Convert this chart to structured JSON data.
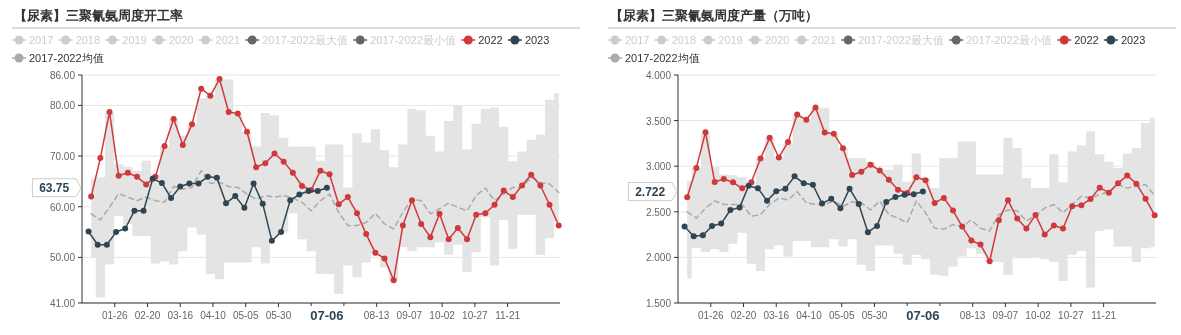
{
  "chart_data": [
    {
      "type": "line",
      "title": "【尿素】三聚氰氨周度开工率",
      "legend": "top",
      "grid": "y",
      "x": [
        "--01-08",
        "--01-15",
        "--01-22",
        "--01-29",
        "--02-05",
        "--02-12",
        "--02-19",
        "--02-26",
        "--03-04",
        "--03-11",
        "--03-18",
        "--03-25",
        "--04-01",
        "--04-08",
        "--04-15",
        "--04-22",
        "--04-29",
        "--05-06",
        "--05-13",
        "--05-20",
        "--05-27",
        "--06-03",
        "--06-10",
        "--06-17",
        "--06-24",
        "--07-01",
        "--07-08",
        "--07-15",
        "--07-22",
        "--07-29",
        "--08-05",
        "--08-12",
        "--08-19",
        "--08-26",
        "--09-02",
        "--09-09",
        "--09-16",
        "--09-23",
        "--09-30",
        "--10-07",
        "--10-14",
        "--10-21",
        "--10-28",
        "--11-04",
        "--11-11",
        "--11-18",
        "--11-25",
        "--12-02",
        "--12-09",
        "--12-16",
        "--12-23",
        "--12-30"
      ],
      "xlim": [
        "--01-01",
        "--12-31"
      ],
      "xticks": [
        {
          "value": "--01-26",
          "label": "01-26"
        },
        {
          "value": "--02-20",
          "label": "02-20"
        },
        {
          "value": "--03-16",
          "label": "03-16"
        },
        {
          "value": "--04-10",
          "label": "04-10"
        },
        {
          "value": "--05-05",
          "label": "05-05"
        },
        {
          "value": "--05-30",
          "label": "05-30"
        },
        {
          "value": "--06-24",
          "label": null
        },
        {
          "value": "--07-19",
          "label": null
        },
        {
          "value": "--08-13",
          "label": "08-13"
        },
        {
          "value": "--09-07",
          "label": "09-07"
        },
        {
          "value": "--10-02",
          "label": "10-02"
        },
        {
          "value": "--10-27",
          "label": "10-27"
        },
        {
          "value": "--11-21",
          "label": "11-21"
        }
      ],
      "ylim": [
        41,
        86
      ],
      "yticks": [
        {
          "value": 41,
          "label": "41.00"
        },
        {
          "value": 50,
          "label": "50.00"
        },
        {
          "value": 60,
          "label": "60.00"
        },
        {
          "value": 70,
          "label": "70.00"
        },
        {
          "value": 80,
          "label": "80.00"
        },
        {
          "value": 86,
          "label": "86.00"
        }
      ],
      "annotations": [
        "63.75",
        "07-06"
      ],
      "series": [
        {
          "name": "2017",
          "color": "#cccccc",
          "values": [
            null,
            null,
            null,
            null,
            null,
            null,
            null,
            null,
            null,
            null,
            null,
            null,
            null,
            null,
            null,
            null,
            null,
            null,
            null,
            null,
            null,
            null,
            null,
            null,
            null,
            null,
            null,
            null,
            null,
            null,
            null,
            null,
            null,
            null,
            null,
            null,
            null,
            null,
            null,
            null,
            null,
            null,
            null,
            null,
            null,
            null,
            null,
            null,
            null,
            null,
            null,
            null
          ]
        },
        {
          "name": "2018",
          "color": "#cccccc",
          "values": [
            null,
            null,
            null,
            null,
            null,
            null,
            null,
            null,
            null,
            null,
            null,
            null,
            null,
            null,
            null,
            null,
            null,
            null,
            null,
            null,
            null,
            null,
            null,
            null,
            null,
            null,
            null,
            null,
            null,
            null,
            null,
            null,
            null,
            null,
            null,
            null,
            null,
            null,
            null,
            null,
            null,
            null,
            null,
            null,
            null,
            null,
            null,
            null,
            null,
            null,
            null,
            null
          ]
        },
        {
          "name": "2019",
          "color": "#cccccc",
          "values": [
            null,
            null,
            null,
            null,
            null,
            null,
            null,
            null,
            null,
            null,
            null,
            null,
            null,
            null,
            null,
            null,
            null,
            null,
            null,
            null,
            null,
            null,
            null,
            null,
            null,
            null,
            null,
            null,
            null,
            null,
            null,
            null,
            null,
            null,
            null,
            null,
            null,
            null,
            null,
            null,
            null,
            null,
            null,
            null,
            null,
            null,
            null,
            null,
            null,
            null,
            null,
            null
          ]
        },
        {
          "name": "2020",
          "color": "#cccccc",
          "values": [
            null,
            null,
            null,
            null,
            null,
            null,
            null,
            null,
            null,
            null,
            null,
            null,
            null,
            null,
            null,
            null,
            null,
            null,
            null,
            null,
            null,
            null,
            null,
            null,
            null,
            null,
            null,
            null,
            null,
            null,
            null,
            null,
            null,
            null,
            null,
            null,
            null,
            null,
            null,
            null,
            null,
            null,
            null,
            null,
            null,
            null,
            null,
            null,
            null,
            null,
            null,
            null
          ]
        },
        {
          "name": "2021",
          "color": "#cccccc",
          "values": [
            null,
            null,
            null,
            null,
            null,
            null,
            null,
            null,
            null,
            null,
            null,
            null,
            null,
            null,
            null,
            null,
            null,
            null,
            null,
            null,
            null,
            null,
            null,
            null,
            null,
            null,
            null,
            null,
            null,
            null,
            null,
            null,
            null,
            null,
            null,
            null,
            null,
            null,
            null,
            null,
            null,
            null,
            null,
            null,
            null,
            null,
            null,
            null,
            null,
            null,
            null,
            null
          ]
        },
        {
          "name": "2017-2022最大值",
          "color": "#666666",
          "values": [
            null,
            null,
            null,
            null,
            null,
            null,
            null,
            null,
            null,
            null,
            null,
            null,
            null,
            null,
            null,
            null,
            null,
            null,
            null,
            null,
            null,
            null,
            null,
            null,
            null,
            null,
            null,
            null,
            null,
            null,
            null,
            null,
            null,
            null,
            null,
            null,
            null,
            null,
            null,
            null,
            null,
            null,
            null,
            null,
            null,
            null,
            null,
            null,
            null,
            null,
            null,
            null
          ]
        },
        {
          "name": "2017-2022最小值",
          "color": "#666666",
          "values": [
            null,
            null,
            null,
            null,
            null,
            null,
            null,
            null,
            null,
            null,
            null,
            null,
            null,
            null,
            null,
            null,
            null,
            null,
            null,
            null,
            null,
            null,
            null,
            null,
            null,
            null,
            null,
            null,
            null,
            null,
            null,
            null,
            null,
            null,
            null,
            null,
            null,
            null,
            null,
            null,
            null,
            null,
            null,
            null,
            null,
            null,
            null,
            null,
            null,
            null,
            null,
            null
          ]
        },
        {
          "name": "2017-2022均值",
          "type": "line",
          "line_style": "dashed",
          "marker": "none",
          "color": "#aaaaaa",
          "upper": [
            65.5,
            65.8,
            78.6,
            68.4,
            67.9,
            67.1,
            69.1,
            66.3,
            71.9,
            77.3,
            74.0,
            76.3,
            81.4,
            81.9,
            85.1,
            85.1,
            78.3,
            74.7,
            71.9,
            78.5,
            78.0,
            73.6,
            71.9,
            71.9,
            71.9,
            69.1,
            72.3,
            72.3,
            63.8,
            74.5,
            72.7,
            75.3,
            71.2,
            67.8,
            72.3,
            79.3,
            79.0,
            74.0,
            70.9,
            76.9,
            80.1,
            71.3,
            76.4,
            79.3,
            79.6,
            75.8,
            69.0,
            70.9,
            73.2,
            74.2,
            81.1,
            82.4
          ],
          "lower": [
            50.0,
            42.1,
            48.6,
            58.2,
            56.6,
            54.2,
            54.2,
            48.8,
            49.2,
            48.6,
            51.2,
            55.9,
            54.5,
            46.7,
            45.7,
            49.0,
            49.0,
            49.0,
            52.0,
            48.8,
            54.0,
            54.9,
            58.7,
            53.6,
            51.2,
            46.7,
            46.7,
            42.8,
            48.4,
            46.1,
            49.0,
            50.7,
            48.0,
            45.4,
            52.0,
            51.2,
            52.0,
            52.0,
            53.0,
            50.5,
            52.5,
            47.1,
            51.0,
            57.9,
            48.4,
            57.4,
            51.7,
            58.4,
            58.4,
            50.5,
            53.8,
            57.1
          ],
          "values": [
            58.6,
            57.4,
            59.9,
            62.6,
            61.9,
            61.2,
            61.9,
            61.2,
            60.9,
            64.0,
            63.5,
            63.8,
            67.1,
            64.6,
            64.8,
            64.0,
            63.8,
            62.5,
            61.5,
            62.2,
            61.9,
            62.2,
            61.7,
            60.9,
            59.2,
            61.2,
            62.5,
            58.9,
            56.3,
            56.3,
            56.9,
            58.7,
            56.6,
            55.6,
            58.9,
            61.5,
            61.2,
            58.6,
            59.6,
            60.7,
            59.9,
            59.2,
            62.2,
            63.7,
            61.2,
            62.5,
            63.8,
            63.8,
            65.8,
            64.8,
            64.5,
            62.8
          ]
        },
        {
          "name": "2022",
          "color": "#d0393b",
          "marker": "circle",
          "values": [
            62.0,
            69.6,
            78.7,
            66.1,
            66.7,
            65.9,
            64.4,
            65.9,
            72.0,
            77.3,
            72.2,
            76.3,
            83.3,
            81.9,
            85.2,
            78.7,
            78.4,
            74.8,
            67.8,
            68.6,
            70.5,
            68.9,
            66.7,
            64.1,
            63.3,
            67.1,
            66.4,
            60.5,
            61.9,
            58.7,
            54.6,
            50.9,
            49.8,
            45.5,
            56.3,
            61.3,
            56.6,
            54.0,
            58.6,
            53.6,
            55.8,
            53.6,
            58.4,
            58.7,
            60.4,
            63.2,
            61.9,
            64.2,
            66.3,
            64.2,
            60.4,
            56.3
          ]
        },
        {
          "name": "2023",
          "color": "#2f4554",
          "marker": "circle",
          "x": [
            "--01-06",
            "--01-13",
            "--01-20",
            "--01-27",
            "--02-03",
            "--02-10",
            "--02-17",
            "--02-24",
            "--03-02",
            "--03-09",
            "--03-16",
            "--03-23",
            "--03-30",
            "--04-06",
            "--04-13",
            "--04-20",
            "--04-27",
            "--05-04",
            "--05-11",
            "--05-18",
            "--05-25",
            "--06-01",
            "--06-08",
            "--06-15",
            "--06-22",
            "--06-29",
            "--07-06"
          ],
          "values": [
            55.1,
            52.5,
            52.5,
            55.0,
            55.7,
            59.2,
            59.2,
            65.5,
            64.7,
            61.7,
            64.0,
            64.6,
            64.6,
            65.9,
            65.7,
            60.7,
            62.1,
            59.8,
            64.6,
            60.6,
            53.3,
            55.0,
            61.3,
            62.4,
            63.1,
            63.1,
            63.75
          ]
        }
      ]
    },
    {
      "type": "line",
      "title": "【尿素】三聚氰氨周度产量（万吨）",
      "legend": "top",
      "grid": "y",
      "x": [
        "--01-08",
        "--01-15",
        "--01-22",
        "--01-29",
        "--02-05",
        "--02-12",
        "--02-19",
        "--02-26",
        "--03-04",
        "--03-11",
        "--03-18",
        "--03-25",
        "--04-01",
        "--04-08",
        "--04-15",
        "--04-22",
        "--04-29",
        "--05-06",
        "--05-13",
        "--05-20",
        "--05-27",
        "--06-03",
        "--06-10",
        "--06-17",
        "--06-24",
        "--07-01",
        "--07-08",
        "--07-15",
        "--07-22",
        "--07-29",
        "--08-05",
        "--08-12",
        "--08-19",
        "--08-26",
        "--09-02",
        "--09-09",
        "--09-16",
        "--09-23",
        "--09-30",
        "--10-07",
        "--10-14",
        "--10-21",
        "--10-28",
        "--11-04",
        "--11-11",
        "--11-18",
        "--11-25",
        "--12-02",
        "--12-09",
        "--12-16",
        "--12-23",
        "--12-30"
      ],
      "xlim": [
        "--01-01",
        "--12-31"
      ],
      "xticks": [
        {
          "value": "--01-26",
          "label": "01-26"
        },
        {
          "value": "--02-20",
          "label": "02-20"
        },
        {
          "value": "--03-16",
          "label": "03-16"
        },
        {
          "value": "--04-10",
          "label": "04-10"
        },
        {
          "value": "--05-05",
          "label": "05-05"
        },
        {
          "value": "--05-30",
          "label": "05-30"
        },
        {
          "value": "--06-24",
          "label": null
        },
        {
          "value": "--07-19",
          "label": null
        },
        {
          "value": "--08-13",
          "label": "08-13"
        },
        {
          "value": "--09-07",
          "label": "09-07"
        },
        {
          "value": "--10-02",
          "label": "10-02"
        },
        {
          "value": "--10-27",
          "label": "10-27"
        },
        {
          "value": "--11-21",
          "label": "11-21"
        }
      ],
      "ylim": [
        1.5,
        4
      ],
      "yticks": [
        {
          "value": 1.5,
          "label": "1.500"
        },
        {
          "value": 2,
          "label": "2.000"
        },
        {
          "value": 2.5,
          "label": "2.500"
        },
        {
          "value": 3,
          "label": "3.000"
        },
        {
          "value": 3.5,
          "label": "3.500"
        },
        {
          "value": 4,
          "label": "4.000"
        }
      ],
      "annotations": [
        "2.722",
        "07-06"
      ],
      "series": [
        {
          "name": "2017",
          "color": "#cccccc",
          "values": [
            null,
            null,
            null,
            null,
            null,
            null,
            null,
            null,
            null,
            null,
            null,
            null,
            null,
            null,
            null,
            null,
            null,
            null,
            null,
            null,
            null,
            null,
            null,
            null,
            null,
            null,
            null,
            null,
            null,
            null,
            null,
            null,
            null,
            null,
            null,
            null,
            null,
            null,
            null,
            null,
            null,
            null,
            null,
            null,
            null,
            null,
            null,
            null,
            null,
            null,
            null,
            null
          ]
        },
        {
          "name": "2018",
          "color": "#cccccc",
          "values": [
            null,
            null,
            null,
            null,
            null,
            null,
            null,
            null,
            null,
            null,
            null,
            null,
            null,
            null,
            null,
            null,
            null,
            null,
            null,
            null,
            null,
            null,
            null,
            null,
            null,
            null,
            null,
            null,
            null,
            null,
            null,
            null,
            null,
            null,
            null,
            null,
            null,
            null,
            null,
            null,
            null,
            null,
            null,
            null,
            null,
            null,
            null,
            null,
            null,
            null,
            null,
            null
          ]
        },
        {
          "name": "2019",
          "color": "#cccccc",
          "values": [
            null,
            null,
            null,
            null,
            null,
            null,
            null,
            null,
            null,
            null,
            null,
            null,
            null,
            null,
            null,
            null,
            null,
            null,
            null,
            null,
            null,
            null,
            null,
            null,
            null,
            null,
            null,
            null,
            null,
            null,
            null,
            null,
            null,
            null,
            null,
            null,
            null,
            null,
            null,
            null,
            null,
            null,
            null,
            null,
            null,
            null,
            null,
            null,
            null,
            null,
            null,
            null
          ]
        },
        {
          "name": "2020",
          "color": "#cccccc",
          "values": [
            null,
            null,
            null,
            null,
            null,
            null,
            null,
            null,
            null,
            null,
            null,
            null,
            null,
            null,
            null,
            null,
            null,
            null,
            null,
            null,
            null,
            null,
            null,
            null,
            null,
            null,
            null,
            null,
            null,
            null,
            null,
            null,
            null,
            null,
            null,
            null,
            null,
            null,
            null,
            null,
            null,
            null,
            null,
            null,
            null,
            null,
            null,
            null,
            null,
            null,
            null,
            null
          ]
        },
        {
          "name": "2021",
          "color": "#cccccc",
          "values": [
            null,
            null,
            null,
            null,
            null,
            null,
            null,
            null,
            null,
            null,
            null,
            null,
            null,
            null,
            null,
            null,
            null,
            null,
            null,
            null,
            null,
            null,
            null,
            null,
            null,
            null,
            null,
            null,
            null,
            null,
            null,
            null,
            null,
            null,
            null,
            null,
            null,
            null,
            null,
            null,
            null,
            null,
            null,
            null,
            null,
            null,
            null,
            null,
            null,
            null,
            null,
            null
          ]
        },
        {
          "name": "2017-2022最大值",
          "color": "#666666",
          "values": [
            null,
            null,
            null,
            null,
            null,
            null,
            null,
            null,
            null,
            null,
            null,
            null,
            null,
            null,
            null,
            null,
            null,
            null,
            null,
            null,
            null,
            null,
            null,
            null,
            null,
            null,
            null,
            null,
            null,
            null,
            null,
            null,
            null,
            null,
            null,
            null,
            null,
            null,
            null,
            null,
            null,
            null,
            null,
            null,
            null,
            null,
            null,
            null,
            null,
            null,
            null,
            null
          ]
        },
        {
          "name": "2017-2022最小值",
          "color": "#666666",
          "values": [
            null,
            null,
            null,
            null,
            null,
            null,
            null,
            null,
            null,
            null,
            null,
            null,
            null,
            null,
            null,
            null,
            null,
            null,
            null,
            null,
            null,
            null,
            null,
            null,
            null,
            null,
            null,
            null,
            null,
            null,
            null,
            null,
            null,
            null,
            null,
            null,
            null,
            null,
            null,
            null,
            null,
            null,
            null,
            null,
            null,
            null,
            null,
            null,
            null,
            null,
            null,
            null
          ]
        },
        {
          "name": "2017-2022均值",
          "type": "line",
          "line_style": "dashed",
          "marker": "none",
          "color": "#aaaaaa",
          "upper": [
            2.84,
            2.98,
            3.36,
            2.99,
            2.91,
            2.9,
            2.88,
            2.82,
            3.09,
            3.31,
            3.1,
            3.26,
            3.56,
            3.5,
            3.64,
            3.64,
            3.35,
            3.2,
            3.09,
            3.09,
            3.05,
            2.96,
            2.96,
            3.02,
            2.83,
            3.14,
            2.87,
            2.76,
            3.09,
            3.09,
            3.27,
            3.27,
            2.91,
            2.91,
            2.91,
            3.31,
            3.2,
            2.87,
            2.76,
            2.76,
            3.13,
            2.82,
            3.16,
            3.23,
            3.38,
            3.13,
            3.05,
            2.98,
            3.14,
            3.2,
            3.47,
            3.53
          ],
          "lower": [
            1.77,
            2.1,
            2.06,
            2.09,
            2.06,
            2.15,
            2.27,
            1.93,
            1.85,
            2.09,
            2.13,
            2.01,
            2.18,
            2.18,
            2.11,
            2.11,
            2.2,
            2.12,
            2.2,
            1.92,
            1.85,
            2.13,
            2.13,
            2.04,
            1.92,
            2.03,
            1.98,
            1.81,
            1.8,
            1.9,
            2.01,
            2.1,
            2.04,
            1.95,
            1.95,
            1.81,
            1.99,
            1.99,
            2.0,
            1.98,
            1.95,
            1.74,
            2.03,
            2.07,
            1.67,
            2.29,
            2.31,
            2.12,
            2.12,
            1.95,
            2.1,
            2.11
          ],
          "values": [
            2.5,
            2.43,
            2.54,
            2.62,
            2.58,
            2.58,
            2.58,
            2.45,
            2.47,
            2.58,
            2.65,
            2.63,
            2.72,
            2.6,
            2.58,
            2.58,
            2.62,
            2.56,
            2.61,
            2.6,
            2.52,
            2.62,
            2.47,
            2.43,
            2.38,
            2.62,
            2.49,
            2.32,
            2.31,
            2.36,
            2.34,
            2.41,
            2.32,
            2.29,
            2.47,
            2.52,
            2.51,
            2.4,
            2.46,
            2.54,
            2.58,
            2.49,
            2.58,
            2.67,
            2.65,
            2.69,
            2.72,
            2.8,
            2.76,
            2.78,
            2.8,
            2.68
          ]
        },
        {
          "name": "2022",
          "color": "#d0393b",
          "marker": "circle",
          "values": [
            2.659,
            2.98,
            3.373,
            2.827,
            2.859,
            2.823,
            2.757,
            2.823,
            3.085,
            3.311,
            3.096,
            3.264,
            3.566,
            3.508,
            3.643,
            3.37,
            3.355,
            3.198,
            2.903,
            2.939,
            3.016,
            2.954,
            2.852,
            2.743,
            2.706,
            2.878,
            2.845,
            2.597,
            2.652,
            2.513,
            2.338,
            2.185,
            2.141,
            1.959,
            2.407,
            2.626,
            2.426,
            2.316,
            2.466,
            2.251,
            2.349,
            2.316,
            2.56,
            2.571,
            2.641,
            2.765,
            2.71,
            2.812,
            2.899,
            2.808,
            2.644,
            2.462
          ]
        },
        {
          "name": "2023",
          "color": "#2f4554",
          "marker": "circle",
          "x": [
            "--01-06",
            "--01-13",
            "--01-20",
            "--01-27",
            "--02-03",
            "--02-10",
            "--02-17",
            "--02-24",
            "--03-02",
            "--03-09",
            "--03-16",
            "--03-23",
            "--03-30",
            "--04-06",
            "--04-13",
            "--04-20",
            "--04-27",
            "--05-04",
            "--05-11",
            "--05-18",
            "--05-25",
            "--06-01",
            "--06-08",
            "--06-15",
            "--06-22",
            "--06-29",
            "--07-06"
          ],
          "values": [
            2.338,
            2.232,
            2.243,
            2.345,
            2.371,
            2.52,
            2.546,
            2.786,
            2.757,
            2.622,
            2.724,
            2.754,
            2.889,
            2.812,
            2.797,
            2.59,
            2.644,
            2.539,
            2.754,
            2.586,
            2.276,
            2.345,
            2.608,
            2.663,
            2.688,
            2.692,
            2.722
          ]
        }
      ]
    }
  ]
}
